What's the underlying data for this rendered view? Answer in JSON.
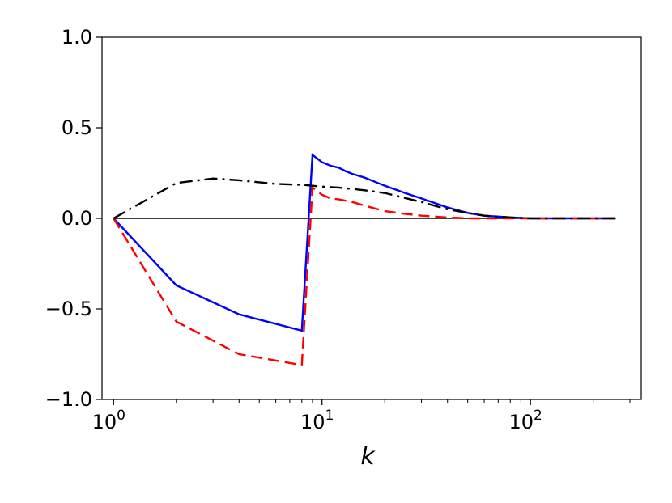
{
  "chart_data": {
    "type": "line",
    "title": "",
    "xlabel": "k",
    "ylabel": "",
    "xscale": "log",
    "xlim": [
      0.88,
      340
    ],
    "ylim": [
      -1.0,
      1.0
    ],
    "grid": false,
    "legend": "none",
    "x_tick_labels": [
      {
        "value": 1,
        "base": "10",
        "exp": "0"
      },
      {
        "value": 10,
        "base": "10",
        "exp": "1"
      },
      {
        "value": 100,
        "base": "10",
        "exp": "2"
      }
    ],
    "y_ticks": [
      -1.0,
      -0.5,
      0.0,
      0.5,
      1.0
    ],
    "y_tick_labels": [
      "−1.0",
      "−0.5",
      "0.0",
      "0.5",
      "1.0"
    ],
    "zero_line": {
      "y": 0,
      "color": "#000000"
    },
    "series": [
      {
        "style": "solid",
        "color": "#0000ff",
        "x": [
          1,
          2,
          4,
          8,
          9,
          10,
          11,
          12,
          13,
          14,
          16,
          20,
          25,
          30,
          40,
          50,
          60,
          80,
          100,
          150,
          200,
          256
        ],
        "y": [
          0.0,
          -0.37,
          -0.53,
          -0.62,
          0.35,
          0.31,
          0.29,
          0.28,
          0.26,
          0.245,
          0.225,
          0.18,
          0.14,
          0.11,
          0.06,
          0.03,
          0.015,
          0.005,
          0.0,
          0.0,
          0.0,
          0.0
        ]
      },
      {
        "style": "dashed",
        "color": "#ff0000",
        "x": [
          1,
          2,
          4,
          8,
          9,
          10,
          11,
          12,
          14,
          16,
          20,
          25,
          30,
          40,
          50,
          80,
          100,
          256
        ],
        "y": [
          0.0,
          -0.57,
          -0.75,
          -0.81,
          0.17,
          0.13,
          0.11,
          0.105,
          0.09,
          0.07,
          0.04,
          0.025,
          0.015,
          0.005,
          0.0,
          0.0,
          0.0,
          0.0
        ]
      },
      {
        "style": "dashdot",
        "color": "#000000",
        "x": [
          1,
          2,
          3,
          4,
          6,
          8,
          9,
          10,
          12,
          16,
          20,
          30,
          40,
          50,
          60,
          80,
          100,
          256
        ],
        "y": [
          0.0,
          0.195,
          0.22,
          0.21,
          0.19,
          0.185,
          0.18,
          0.175,
          0.17,
          0.155,
          0.14,
          0.09,
          0.05,
          0.03,
          0.015,
          0.005,
          0.0,
          0.0
        ]
      }
    ]
  }
}
